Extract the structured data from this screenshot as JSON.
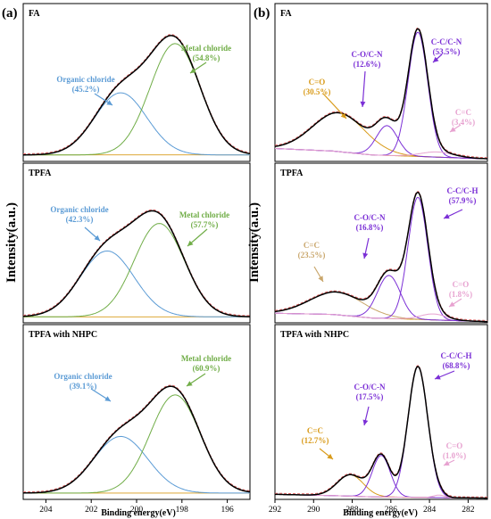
{
  "figure": {
    "panels": [
      {
        "label": "(a)",
        "ylabel": "Intensity(a.u.)",
        "xlabel": "Binding energy(eV)"
      },
      {
        "label": "(b)",
        "ylabel": "Intensity(a.u.)",
        "xlabel": "Binding energy(eV)"
      }
    ]
  },
  "colors": {
    "blue": "#5b9bd5",
    "green": "#70ad47",
    "orange": "#d99b1a",
    "purple": "#7b2fd6",
    "pink": "#e7a2d0",
    "tan": "#c9a66b",
    "envelope": "#000000",
    "raw": "#e06060"
  },
  "chart_data": [
    {
      "type": "line",
      "title": "FA",
      "xlabel": "Binding energy(eV)",
      "ylabel": "Intensity(a.u.)",
      "xlim": [
        205,
        195
      ],
      "xticks": [
        204,
        202,
        200,
        198,
        196
      ],
      "baseline": [
        [
          205,
          0.05
        ],
        [
          195,
          0.05
        ]
      ],
      "peaks": [
        {
          "name": "Organic chloride",
          "pct": "(45.2%)",
          "center": 200.7,
          "fwhm": 2.7,
          "height": 0.48,
          "color": "blue"
        },
        {
          "name": "Metal chloride",
          "pct": "(54.8%)",
          "center": 198.3,
          "fwhm": 2.6,
          "height": 0.86,
          "color": "green"
        }
      ]
    },
    {
      "type": "line",
      "title": "TPFA",
      "xlabel": "Binding energy(eV)",
      "ylabel": "Intensity(a.u.)",
      "xlim": [
        205,
        195
      ],
      "xticks": [
        204,
        202,
        200,
        198,
        196
      ],
      "baseline": [
        [
          205,
          0.05
        ],
        [
          195,
          0.05
        ]
      ],
      "peaks": [
        {
          "name": "Organic chloride",
          "pct": "(42.3%)",
          "center": 201.3,
          "fwhm": 2.8,
          "height": 0.55,
          "color": "blue"
        },
        {
          "name": "Metal chloride",
          "pct": "(57.7%)",
          "center": 199.0,
          "fwhm": 2.6,
          "height": 0.78,
          "color": "green"
        }
      ]
    },
    {
      "type": "line",
      "title": "TPFA with NHPC",
      "xlabel": "Binding energy(eV)",
      "ylabel": "Intensity(a.u.)",
      "xlim": [
        205,
        195
      ],
      "xticks": [
        204,
        202,
        200,
        198,
        196
      ],
      "baseline": [
        [
          205,
          0.05
        ],
        [
          195,
          0.05
        ]
      ],
      "peaks": [
        {
          "name": "Organic chloride",
          "pct": "(39.1%)",
          "center": 200.7,
          "fwhm": 2.8,
          "height": 0.45,
          "color": "blue"
        },
        {
          "name": "Metal chloride",
          "pct": "(60.9%)",
          "center": 198.3,
          "fwhm": 2.6,
          "height": 0.78,
          "color": "green"
        }
      ]
    },
    {
      "type": "line",
      "title": "FA",
      "xlabel": "Binding energy(eV)",
      "ylabel": "Intensity(a.u.)",
      "xlim": [
        292,
        281
      ],
      "xticks": [
        292,
        290,
        288,
        286,
        284,
        282
      ],
      "baseline": [
        [
          292,
          0.1
        ],
        [
          289,
          0.08
        ],
        [
          287,
          0.05
        ],
        [
          281,
          0.02
        ]
      ],
      "peaks": [
        {
          "name": "C=O",
          "pct": "(30.5%)",
          "center": 288.7,
          "fwhm": 3.2,
          "height": 0.3,
          "color": "orange"
        },
        {
          "name": "C-O/C-N",
          "pct": "(12.6%)",
          "center": 286.2,
          "fwhm": 1.3,
          "height": 0.23,
          "color": "purple"
        },
        {
          "name": "C-C/C-N",
          "pct": "(53.5%)",
          "center": 284.6,
          "fwhm": 1.2,
          "height": 0.96,
          "color": "purple"
        },
        {
          "name": "C=C",
          "pct": "(3.4%)",
          "center": 283.6,
          "fwhm": 2.0,
          "height": 0.04,
          "color": "pink"
        }
      ]
    },
    {
      "type": "line",
      "title": "TPFA",
      "xlabel": "Binding energy(eV)",
      "ylabel": "Intensity(a.u.)",
      "xlim": [
        292,
        281
      ],
      "xticks": [
        292,
        290,
        288,
        286,
        284,
        282
      ],
      "baseline": [
        [
          292,
          0.08
        ],
        [
          289,
          0.07
        ],
        [
          287,
          0.04
        ],
        [
          281,
          0.01
        ]
      ],
      "peaks": [
        {
          "name": "C=C",
          "pct": "(23.5%)",
          "center": 288.8,
          "fwhm": 3.3,
          "height": 0.19,
          "color": "tan"
        },
        {
          "name": "C-O/C-N",
          "pct": "(16.8%)",
          "center": 286.1,
          "fwhm": 1.4,
          "height": 0.36,
          "color": "purple"
        },
        {
          "name": "C-C/C-H",
          "pct": "(57.9%)",
          "center": 284.6,
          "fwhm": 1.2,
          "height": 1.02,
          "color": "purple"
        },
        {
          "name": "C=O",
          "pct": "(1.8%)",
          "center": 283.8,
          "fwhm": 1.6,
          "height": 0.05,
          "color": "pink"
        }
      ]
    },
    {
      "type": "line",
      "title": "TPFA with NHPC",
      "xlabel": "Binding energy(eV)",
      "ylabel": "Intensity(a.u.)",
      "xlim": [
        292,
        281
      ],
      "xticks": [
        292,
        290,
        288,
        286,
        284,
        282
      ],
      "baseline": [
        [
          292,
          0.04
        ],
        [
          289,
          0.03
        ],
        [
          287,
          0.02
        ],
        [
          281,
          0.01
        ]
      ],
      "peaks": [
        {
          "name": "C=C",
          "pct": "(12.7%)",
          "center": 288.1,
          "fwhm": 1.6,
          "height": 0.17,
          "color": "orange"
        },
        {
          "name": "C-O/C-N",
          "pct": "(17.5%)",
          "center": 286.5,
          "fwhm": 1.1,
          "height": 0.33,
          "color": "purple"
        },
        {
          "name": "C-C/C-H",
          "pct": "(68.8%)",
          "center": 284.6,
          "fwhm": 1.2,
          "height": 1.04,
          "color": "purple"
        },
        {
          "name": "C=O",
          "pct": "(1.0%)",
          "center": 283.5,
          "fwhm": 0.7,
          "height": 0.02,
          "color": "pink"
        }
      ]
    }
  ]
}
